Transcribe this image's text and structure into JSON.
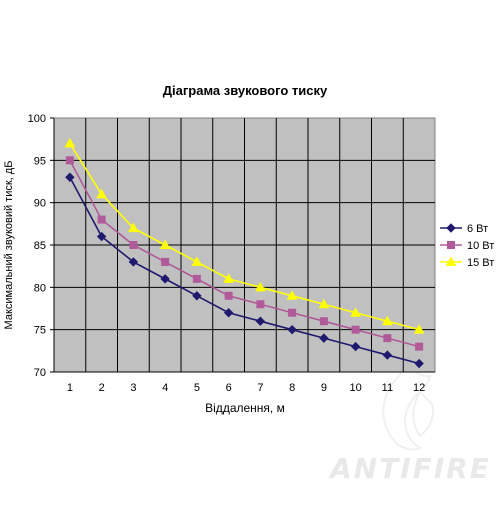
{
  "chart_data": {
    "type": "line",
    "title": "Діаграма звукового тиску",
    "xlabel": "Віддалення, м",
    "ylabel": "Максимальний звуковий тиск, дБ",
    "x": [
      1,
      2,
      3,
      4,
      5,
      6,
      7,
      8,
      9,
      10,
      11,
      12
    ],
    "x_tick_labels": [
      "1",
      "2",
      "3",
      "4",
      "5",
      "6",
      "7",
      "8",
      "9",
      "10",
      "11",
      "12"
    ],
    "ylim": [
      70,
      100
    ],
    "y_ticks": [
      70,
      75,
      80,
      85,
      90,
      95,
      100
    ],
    "y_tick_labels": [
      "70",
      "75",
      "80",
      "85",
      "90",
      "95",
      "100"
    ],
    "grid": true,
    "legend_position": "right",
    "plot_background": "#c0c0c0",
    "series": [
      {
        "name": "6 Вт",
        "color": "#1f1a6e",
        "marker": "diamond",
        "values": [
          93,
          86,
          83,
          81,
          79,
          77,
          76,
          75,
          74,
          73,
          72,
          71
        ]
      },
      {
        "name": "10 Вт",
        "color": "#b05a9a",
        "marker": "square",
        "values": [
          95,
          88,
          85,
          83,
          81,
          79,
          78,
          77,
          76,
          75,
          74,
          73
        ]
      },
      {
        "name": "15 Вт",
        "color": "#ffff00",
        "marker": "triangle",
        "values": [
          97,
          91,
          87,
          85,
          83,
          81,
          80,
          79,
          78,
          77,
          76,
          75
        ]
      }
    ]
  },
  "watermark": {
    "text": "ANTIFIRE",
    "logo": "flame-logo"
  }
}
